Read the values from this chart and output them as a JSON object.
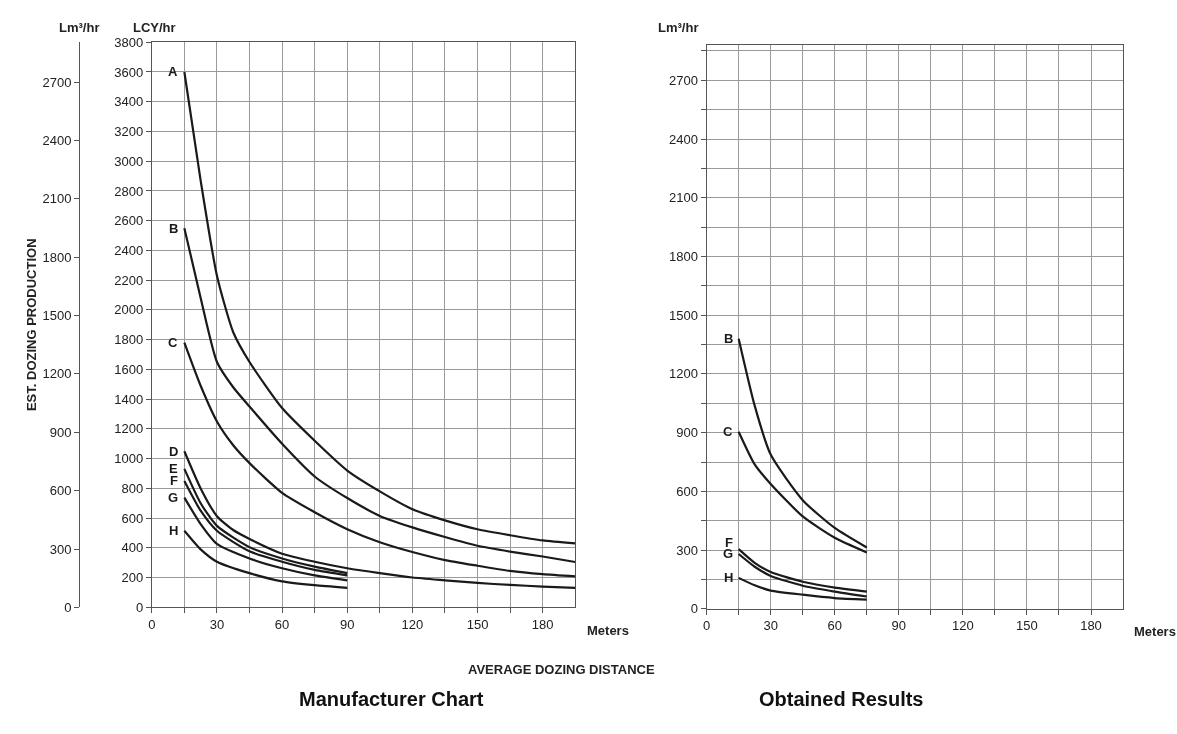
{
  "chart_data": [
    {
      "type": "line",
      "title": "Manufacturer Chart",
      "xlabel": "Meters",
      "ylabel": "LCY/hr",
      "y2label": "Lm³/hr",
      "annotations": [
        "EST. DOZING PRODUCTION",
        "AVERAGE DOZING DISTANCE"
      ],
      "xlim": [
        0,
        195
      ],
      "xticks": [
        0,
        {
          "value": 15,
          "label": null
        },
        30,
        {
          "value": 45,
          "label": null
        },
        60,
        {
          "value": 75,
          "label": null
        },
        90,
        {
          "value": 105,
          "label": null
        },
        120,
        {
          "value": 135,
          "label": null
        },
        150,
        {
          "value": 165,
          "label": null
        },
        180
      ],
      "ylim": [
        0,
        3800
      ],
      "yticks": [
        0,
        200,
        400,
        600,
        800,
        1000,
        1200,
        1400,
        1600,
        1800,
        2000,
        2200,
        2400,
        2600,
        2800,
        3000,
        3200,
        3400,
        3600,
        3800
      ],
      "y2lim": [
        0,
        2905
      ],
      "y2ticks": [
        0,
        300,
        600,
        900,
        1200,
        1500,
        1800,
        2100,
        2400,
        2700
      ],
      "grid": true,
      "line_style": "solid",
      "series": [
        {
          "name": "A",
          "color": "#1a1a1a",
          "x": [
            15,
            22.5,
            30,
            37.5,
            45,
            60,
            75,
            90,
            105,
            120,
            135,
            150,
            165,
            180,
            195
          ],
          "values": [
            3600,
            2870,
            2230,
            1850,
            1650,
            1340,
            1120,
            920,
            780,
            660,
            585,
            525,
            485,
            450,
            430
          ]
        },
        {
          "name": "B",
          "color": "#1a1a1a",
          "x": [
            15,
            22.5,
            30,
            37.5,
            45,
            60,
            75,
            90,
            105,
            120,
            135,
            150,
            165,
            180,
            195
          ],
          "values": [
            2550,
            2080,
            1650,
            1480,
            1350,
            1100,
            880,
            735,
            615,
            538,
            473,
            414,
            375,
            342,
            305
          ]
        },
        {
          "name": "C",
          "color": "#1a1a1a",
          "x": [
            15,
            22.5,
            30,
            37.5,
            45,
            60,
            75,
            90,
            105,
            120,
            135,
            150,
            165,
            180,
            195
          ],
          "values": [
            1780,
            1490,
            1250,
            1090,
            970,
            770,
            640,
            526,
            438,
            372,
            318,
            280,
            245,
            223,
            208
          ]
        },
        {
          "name": "D",
          "color": "#1a1a1a",
          "x": [
            15,
            22.5,
            30,
            37.5,
            45,
            60,
            75,
            90,
            105,
            120,
            135,
            150,
            165,
            180,
            195
          ],
          "values": [
            1050,
            800,
            613,
            520,
            460,
            361,
            307,
            263,
            230,
            201,
            182,
            164,
            151,
            140,
            131
          ]
        },
        {
          "name": "E",
          "color": "#1a1a1a",
          "x": [
            15,
            22.5,
            30,
            45,
            60,
            75,
            90
          ],
          "values": [
            931,
            700,
            548,
            405,
            329,
            274,
            230
          ]
        },
        {
          "name": "F",
          "color": "#1a1a1a",
          "x": [
            15,
            22.5,
            30,
            45,
            60,
            75,
            90
          ],
          "values": [
            850,
            650,
            515,
            377,
            307,
            252,
            215
          ]
        },
        {
          "name": "G",
          "color": "#1a1a1a",
          "x": [
            15,
            22.5,
            30,
            45,
            60,
            75,
            90
          ],
          "values": [
            738,
            560,
            427,
            329,
            263,
            215,
            182
          ]
        },
        {
          "name": "H",
          "color": "#1a1a1a",
          "x": [
            15,
            22.5,
            30,
            45,
            60,
            75,
            90
          ],
          "values": [
            515,
            390,
            307,
            230,
            175,
            149,
            131
          ]
        }
      ]
    },
    {
      "type": "line",
      "title": "Obtained Results",
      "xlabel": "Meters",
      "ylabel": "Lm³/hr",
      "xlim": [
        0,
        195
      ],
      "xticks": [
        0,
        {
          "value": 15,
          "label": null
        },
        30,
        {
          "value": 45,
          "label": null
        },
        60,
        {
          "value": 75,
          "label": null
        },
        90,
        {
          "value": 105,
          "label": null
        },
        120,
        {
          "value": 135,
          "label": null
        },
        150,
        {
          "value": 165,
          "label": null
        },
        180
      ],
      "ylim": [
        0,
        2880
      ],
      "yticks": [
        0,
        {
          "value": 150,
          "label": null
        },
        300,
        {
          "value": 450,
          "label": null
        },
        600,
        {
          "value": 750,
          "label": null
        },
        900,
        {
          "value": 1050,
          "label": null
        },
        1200,
        {
          "value": 1350,
          "label": null
        },
        1500,
        {
          "value": 1650,
          "label": null
        },
        1800,
        {
          "value": 1950,
          "label": null
        },
        2100,
        {
          "value": 2250,
          "label": null
        },
        2400,
        {
          "value": 2550,
          "label": null
        },
        2700,
        {
          "value": 2850,
          "label": null
        }
      ],
      "grid": true,
      "line_style": "solid",
      "series": [
        {
          "name": "B",
          "color": "#1a1a1a",
          "x": [
            15,
            22.5,
            30,
            45,
            60,
            75
          ],
          "values": [
            1380,
            1038,
            788,
            555,
            413,
            313
          ]
        },
        {
          "name": "C",
          "color": "#1a1a1a",
          "x": [
            15,
            22.5,
            30,
            45,
            60,
            75
          ],
          "values": [
            905,
            738,
            638,
            472,
            363,
            288
          ]
        },
        {
          "name": "F",
          "color": "#1a1a1a",
          "x": [
            15,
            22.5,
            30,
            45,
            60,
            75
          ],
          "values": [
            305,
            235,
            188,
            138,
            108,
            88
          ]
        },
        {
          "name": "G",
          "color": "#1a1a1a",
          "x": [
            15,
            22.5,
            30,
            45,
            60,
            75
          ],
          "values": [
            280,
            215,
            168,
            118,
            88,
            63
          ]
        },
        {
          "name": "H",
          "color": "#1a1a1a",
          "x": [
            15,
            22.5,
            30,
            45,
            60,
            75
          ],
          "values": [
            158,
            120,
            93,
            72,
            55,
            47
          ]
        }
      ]
    }
  ]
}
